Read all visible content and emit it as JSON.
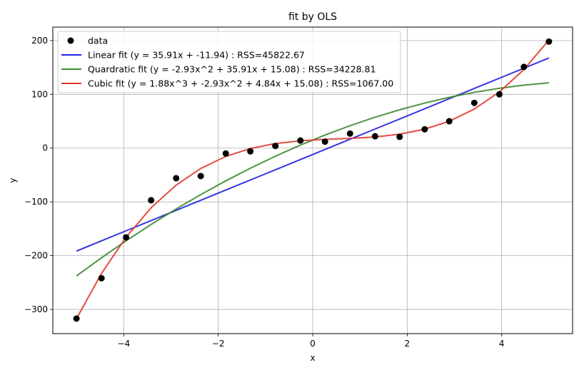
{
  "chart_data": {
    "type": "scatter",
    "title": "fit by OLS",
    "xlabel": "x",
    "ylabel": "y",
    "xlim": [
      -5.5,
      5.5
    ],
    "ylim": [
      -345,
      225
    ],
    "xticks": [
      -4,
      -2,
      0,
      2,
      4
    ],
    "yticks": [
      -300,
      -200,
      -100,
      0,
      100,
      200
    ],
    "grid": true,
    "legend_position": "top-left",
    "points": {
      "name": "data",
      "color": "#000000",
      "x": [
        -5.0,
        -4.47,
        -3.95,
        -3.42,
        -2.89,
        -2.37,
        -1.84,
        -1.32,
        -0.79,
        -0.26,
        0.26,
        0.79,
        1.32,
        1.84,
        2.37,
        2.89,
        3.42,
        3.95,
        4.47,
        5.0
      ],
      "y": [
        -317,
        -242,
        -166,
        -97,
        -56,
        -52,
        -10,
        -6,
        4,
        14,
        12,
        27,
        22,
        21,
        35,
        50,
        84,
        100,
        151,
        198
      ]
    },
    "series": [
      {
        "name": "Linear fit (y = 35.91x + -11.94) : RSS=45822.67",
        "color": "#2020e0",
        "coeffs": [
          -11.94,
          35.91,
          0,
          0
        ]
      },
      {
        "name": "Quardratic fit (y = -2.93x^2 + 35.91x + 15.08) : RSS=34228.81",
        "color": "#3a8a2e",
        "coeffs": [
          15.08,
          35.91,
          -2.93,
          0
        ]
      },
      {
        "name": "Cubic fit (y = 1.88x^3 + -2.93x^2 + 4.84x + 15.08) : RSS=1067.00",
        "color": "#e03a2a",
        "coeffs": [
          15.08,
          4.84,
          -2.93,
          1.88
        ]
      }
    ]
  }
}
